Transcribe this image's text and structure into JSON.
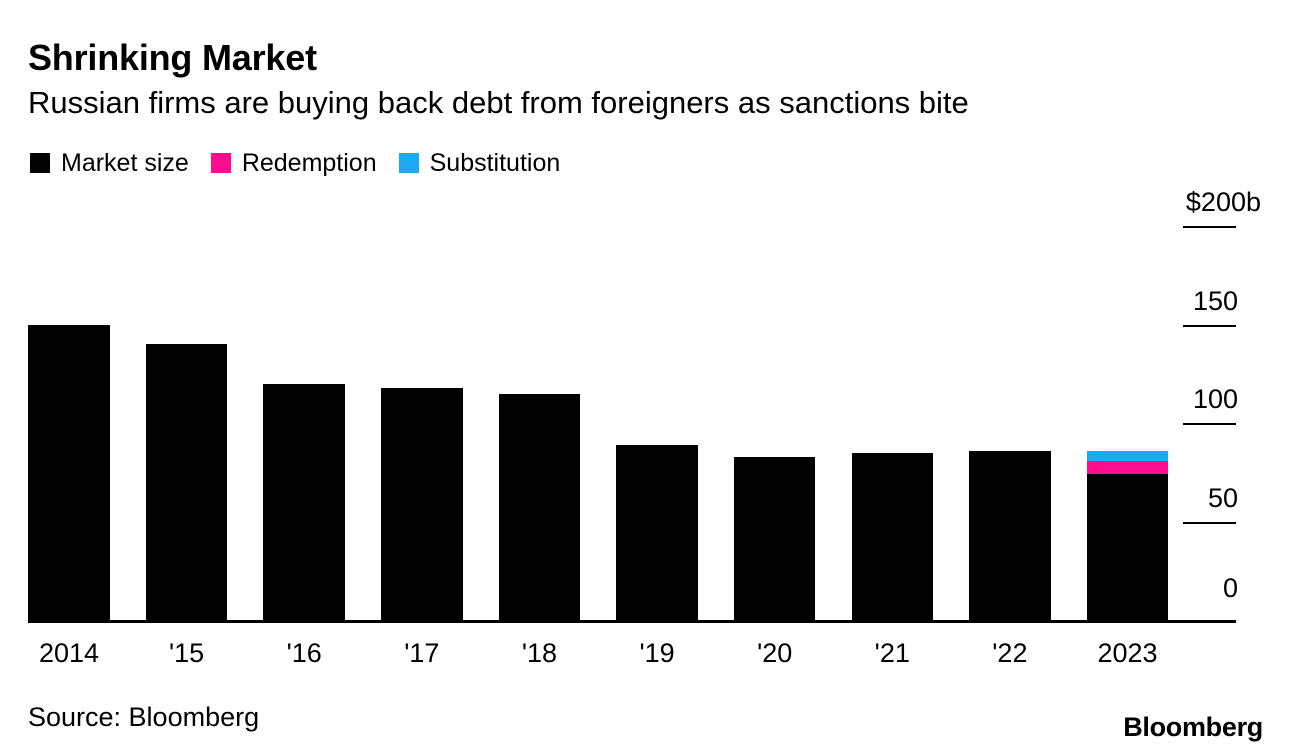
{
  "header": {
    "title": "Shrinking Market",
    "subtitle": "Russian firms are buying back debt from foreigners as sanctions bite"
  },
  "legend": [
    {
      "label": "Market size",
      "color": "#000000"
    },
    {
      "label": "Redemption",
      "color": "#ff0d8c"
    },
    {
      "label": "Substitution",
      "color": "#1ca9f0"
    }
  ],
  "footer": {
    "source": "Source: Bloomberg",
    "logo": "Bloomberg"
  },
  "chart_data": {
    "type": "bar",
    "stacked": true,
    "title": "Shrinking Market",
    "subtitle": "Russian firms are buying back debt from foreigners as sanctions bite",
    "unit": "$ billions",
    "categories": [
      "2014",
      "'15",
      "'16",
      "'17",
      "'18",
      "'19",
      "'20",
      "'21",
      "'22",
      "2023"
    ],
    "series": [
      {
        "name": "Market size",
        "color": "#000000",
        "values": [
          150,
          140,
          120,
          118,
          115,
          89,
          83,
          85,
          86,
          74
        ]
      },
      {
        "name": "Redemption",
        "color": "#ff0d8c",
        "values": [
          0,
          0,
          0,
          0,
          0,
          0,
          0,
          0,
          0,
          7
        ]
      },
      {
        "name": "Substitution",
        "color": "#1ca9f0",
        "values": [
          0,
          0,
          0,
          0,
          0,
          0,
          0,
          0,
          0,
          5
        ]
      }
    ],
    "ylim": [
      0,
      200
    ],
    "yticks": [
      {
        "value": 200,
        "label": "$200b"
      },
      {
        "value": 150,
        "label": "150"
      },
      {
        "value": 100,
        "label": "100"
      },
      {
        "value": 50,
        "label": "50"
      },
      {
        "value": 0,
        "label": "0"
      }
    ],
    "grid": false,
    "legend_position": "top-left"
  }
}
